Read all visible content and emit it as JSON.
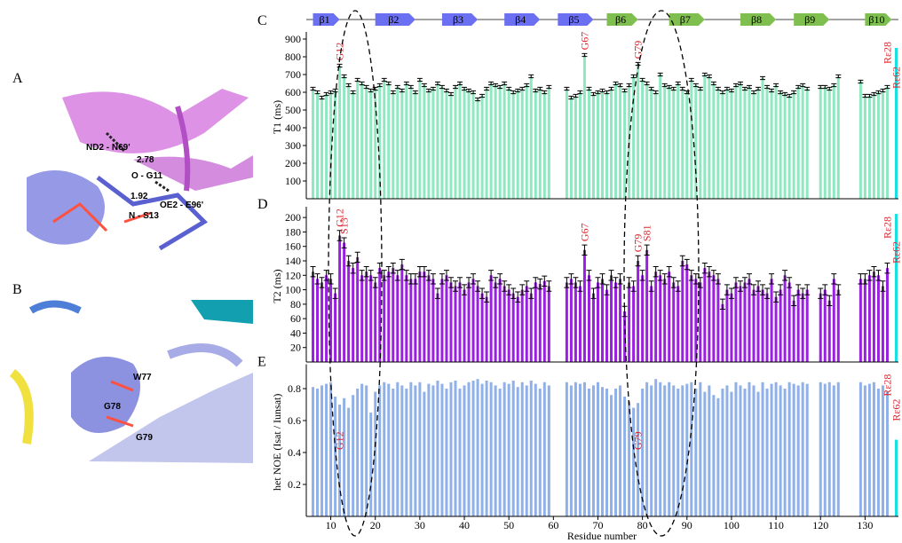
{
  "images": [
    {
      "label": "A",
      "annotations": [
        "ND2 - N69'",
        "2.78",
        "O - G11",
        "1.92",
        "OE2 - E96'",
        "N - S13"
      ]
    },
    {
      "label": "B",
      "annotations": [
        "W77",
        "G78",
        "G79"
      ]
    }
  ],
  "chart_data": {
    "type": "bar",
    "xlabel": "Residue number",
    "xlim": [
      4.5,
      137.5
    ],
    "xticks": [
      10,
      20,
      30,
      40,
      50,
      60,
      70,
      80,
      90,
      100,
      110,
      120,
      130
    ],
    "secondary_structure": [
      {
        "label": "β1",
        "start": 6,
        "end": 12,
        "color": "#6b6ff2"
      },
      {
        "label": "β2",
        "start": 20,
        "end": 29,
        "color": "#6b6ff2"
      },
      {
        "label": "β3",
        "start": 35,
        "end": 43,
        "color": "#6b6ff2"
      },
      {
        "label": "β4",
        "start": 49,
        "end": 57,
        "color": "#6b6ff2"
      },
      {
        "label": "β5",
        "start": 61,
        "end": 69,
        "color": "#6b6ff2"
      },
      {
        "label": "β6",
        "start": 72,
        "end": 79,
        "color": "#7fbf50"
      },
      {
        "label": "β7",
        "start": 86,
        "end": 94,
        "color": "#7fbf50"
      },
      {
        "label": "β8",
        "start": 102,
        "end": 110,
        "color": "#7fbf50"
      },
      {
        "label": "β9",
        "start": 114,
        "end": 122,
        "color": "#7fbf50"
      },
      {
        "label": "β10",
        "start": 130,
        "end": 136,
        "color": "#7fbf50"
      }
    ],
    "x": [
      6,
      7,
      8,
      9,
      10,
      11,
      12,
      13,
      14,
      15,
      16,
      17,
      18,
      19,
      20,
      21,
      22,
      23,
      24,
      25,
      26,
      27,
      28,
      29,
      30,
      31,
      32,
      33,
      34,
      35,
      36,
      37,
      38,
      39,
      40,
      41,
      42,
      43,
      44,
      45,
      46,
      47,
      48,
      49,
      50,
      51,
      52,
      53,
      54,
      55,
      56,
      57,
      58,
      59,
      63,
      64,
      65,
      66,
      67,
      68,
      69,
      70,
      71,
      72,
      73,
      74,
      75,
      76,
      77,
      78,
      79,
      80,
      81,
      82,
      83,
      84,
      85,
      86,
      87,
      88,
      89,
      90,
      91,
      92,
      93,
      94,
      95,
      96,
      97,
      98,
      99,
      100,
      101,
      102,
      103,
      104,
      105,
      106,
      107,
      108,
      109,
      110,
      111,
      112,
      113,
      114,
      115,
      116,
      117,
      120,
      121,
      122,
      123,
      124,
      129,
      130,
      131,
      132,
      133,
      134,
      135
    ],
    "panels": [
      {
        "label": "C",
        "ylabel": "T1 (ms)",
        "ylim": [
          0,
          920
        ],
        "yticks": [
          100,
          200,
          300,
          400,
          500,
          600,
          700,
          800,
          900
        ],
        "color": "#8ee8c0",
        "error": 8,
        "values": [
          620,
          600,
          570,
          590,
          600,
          610,
          750,
          690,
          640,
          600,
          670,
          650,
          630,
          610,
          620,
          640,
          670,
          650,
          600,
          630,
          610,
          650,
          630,
          600,
          670,
          640,
          610,
          620,
          650,
          630,
          610,
          590,
          630,
          650,
          620,
          610,
          600,
          560,
          580,
          620,
          650,
          640,
          630,
          650,
          620,
          600,
          610,
          620,
          640,
          690,
          610,
          620,
          600,
          630,
          620,
          570,
          580,
          600,
          810,
          620,
          590,
          600,
          610,
          600,
          620,
          650,
          640,
          610,
          640,
          690,
          760,
          670,
          650,
          620,
          600,
          700,
          640,
          630,
          620,
          650,
          620,
          600,
          670,
          640,
          620,
          700,
          690,
          650,
          620,
          600,
          620,
          610,
          640,
          650,
          620,
          630,
          600,
          620,
          680,
          630,
          610,
          640,
          600,
          590,
          580,
          600,
          630,
          640,
          620,
          630,
          630,
          620,
          640,
          690,
          660,
          580,
          580,
          590,
          600,
          610,
          630
        ],
        "extra_x": 137,
        "extra_value": 850,
        "extra_color": "#18e0e0",
        "annotations": [
          {
            "text": "G12",
            "x": 12
          },
          {
            "text": "G67",
            "x": 67
          },
          {
            "text": "G79",
            "x": 79
          },
          {
            "text": "Rε28",
            "x": 135
          },
          {
            "text": "Rε62",
            "x": 137
          }
        ]
      },
      {
        "label": "D",
        "ylabel": "T2 (ms)",
        "ylim": [
          0,
          210
        ],
        "yticks": [
          20,
          40,
          60,
          80,
          100,
          120,
          140,
          160,
          180,
          200
        ],
        "color": "#9b1fe0",
        "error": 7,
        "values": [
          125,
          115,
          110,
          120,
          115,
          95,
          175,
          165,
          140,
          130,
          145,
          120,
          125,
          120,
          110,
          130,
          120,
          125,
          130,
          120,
          135,
          120,
          115,
          115,
          125,
          125,
          120,
          115,
          95,
          115,
          120,
          110,
          105,
          110,
          100,
          110,
          115,
          105,
          95,
          90,
          120,
          110,
          115,
          105,
          100,
          95,
          90,
          100,
          105,
          95,
          110,
          108,
          112,
          105,
          110,
          115,
          110,
          105,
          155,
          120,
          95,
          110,
          115,
          100,
          120,
          110,
          115,
          70,
          110,
          105,
          140,
          120,
          155,
          105,
          125,
          120,
          115,
          125,
          110,
          105,
          140,
          135,
          120,
          115,
          110,
          130,
          125,
          120,
          115,
          80,
          100,
          95,
          110,
          105,
          110,
          115,
          100,
          105,
          100,
          95,
          115,
          90,
          100,
          120,
          110,
          85,
          100,
          95,
          100,
          95,
          100,
          85,
          115,
          100,
          115,
          115,
          120,
          125,
          120,
          105,
          130
        ],
        "extra_x": 137,
        "extra_value": 205,
        "extra_color": "#18e0e0",
        "annotations": [
          {
            "text": "G12",
            "x": 12
          },
          {
            "text": "S13",
            "x": 13
          },
          {
            "text": "G67",
            "x": 67
          },
          {
            "text": "G79",
            "x": 79
          },
          {
            "text": "S81",
            "x": 81
          },
          {
            "text": "Rε28",
            "x": 135
          },
          {
            "text": "Rε62",
            "x": 137
          }
        ]
      },
      {
        "label": "E",
        "ylabel": "het NOE (Isat / Iunsat)",
        "ylim": [
          0,
          0.93
        ],
        "yticks": [
          0.2,
          0.4,
          0.6,
          0.8
        ],
        "color": "#8fb0e8",
        "values": [
          0.81,
          0.8,
          0.82,
          0.83,
          0.84,
          0.75,
          0.7,
          0.74,
          0.68,
          0.76,
          0.8,
          0.83,
          0.82,
          0.65,
          0.78,
          0.82,
          0.84,
          0.83,
          0.8,
          0.84,
          0.82,
          0.8,
          0.84,
          0.82,
          0.84,
          0.78,
          0.83,
          0.82,
          0.85,
          0.83,
          0.8,
          0.84,
          0.85,
          0.8,
          0.82,
          0.84,
          0.85,
          0.86,
          0.83,
          0.85,
          0.84,
          0.82,
          0.8,
          0.84,
          0.83,
          0.85,
          0.81,
          0.84,
          0.82,
          0.85,
          0.83,
          0.8,
          0.84,
          0.82,
          0.84,
          0.82,
          0.84,
          0.83,
          0.84,
          0.8,
          0.82,
          0.84,
          0.81,
          0.8,
          0.76,
          0.8,
          0.82,
          0.75,
          0.72,
          0.68,
          0.71,
          0.8,
          0.84,
          0.82,
          0.86,
          0.84,
          0.82,
          0.84,
          0.82,
          0.8,
          0.82,
          0.83,
          0.84,
          0.8,
          0.84,
          0.78,
          0.82,
          0.76,
          0.74,
          0.8,
          0.82,
          0.78,
          0.84,
          0.82,
          0.8,
          0.84,
          0.82,
          0.78,
          0.84,
          0.8,
          0.83,
          0.84,
          0.82,
          0.8,
          0.84,
          0.83,
          0.82,
          0.84,
          0.83,
          0.84,
          0.83,
          0.84,
          0.82,
          0.84,
          0.84,
          0.82,
          0.83,
          0.84,
          0.8,
          0.82,
          0.78
        ],
        "extra_x": 137,
        "extra_value": 0.48,
        "extra_color": "#18e0e0",
        "annotations": [
          {
            "text": "G12",
            "x": 12
          },
          {
            "text": "G79",
            "x": 79
          },
          {
            "text": "Rε28",
            "x": 135
          },
          {
            "text": "Rε62",
            "x": 137
          }
        ]
      }
    ]
  }
}
